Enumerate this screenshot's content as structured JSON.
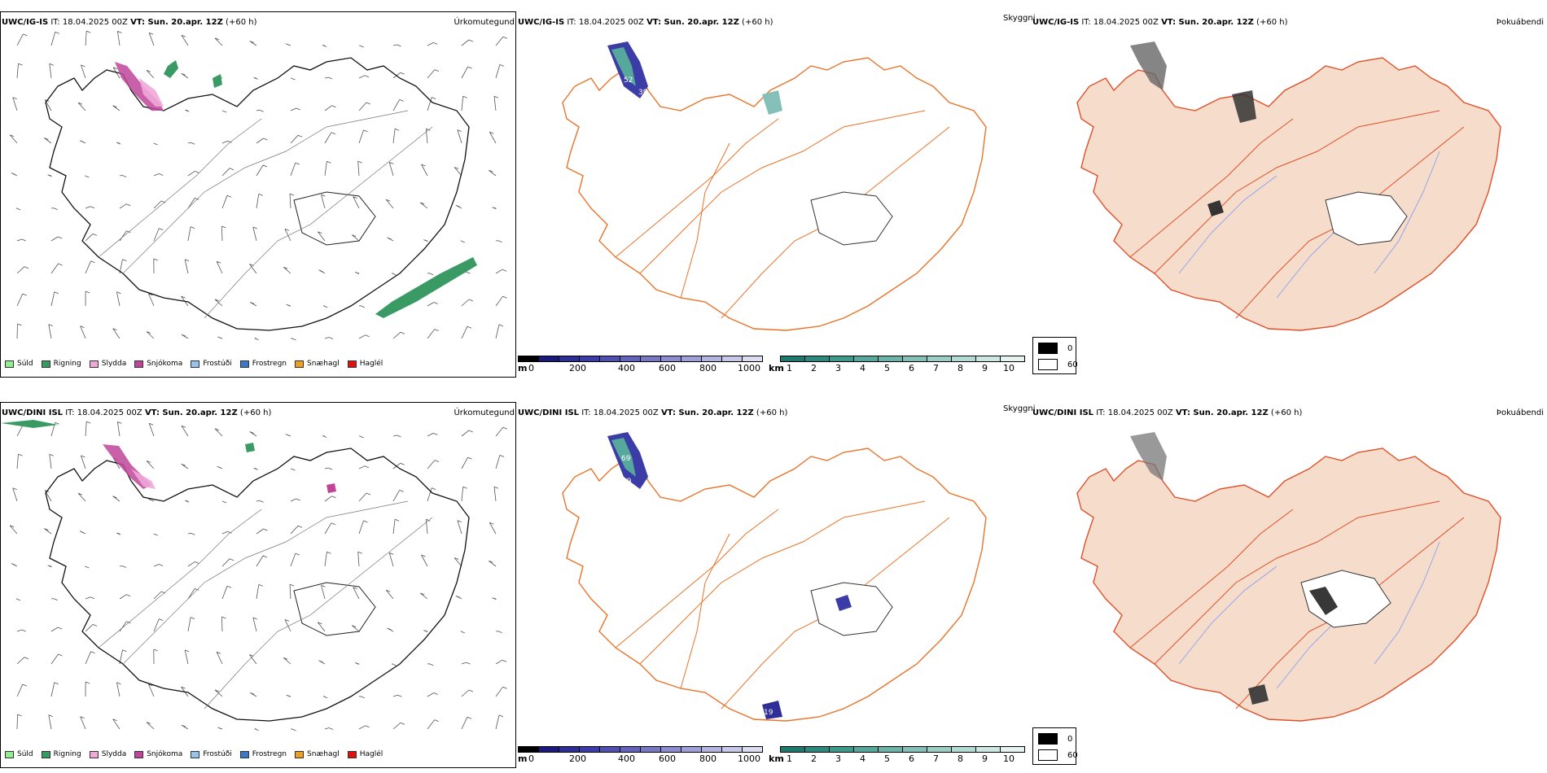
{
  "rows": [
    {
      "id": "row1",
      "model_bold": "UWC/IG-IS",
      "it_text": "IT: 18.04.2025 00Z",
      "vt_bold": "VT: Sun. 20.apr. 12Z",
      "lead": "(+60 h)",
      "panel1_title": "Úrkomutegund",
      "panel2_title": "Skyggni",
      "panel3_title": "Þokuábendi"
    },
    {
      "id": "row2",
      "model_bold": "UWC/DINI ISL",
      "it_text": "IT: 18.04.2025 00Z",
      "vt_bold": "VT: Sun. 20.apr. 12Z",
      "lead": "(+60 h)",
      "panel1_title": "Úrkomutegund",
      "panel2_title": "Skyggni",
      "panel3_title": "Þokuábendi"
    }
  ],
  "precip_legend": [
    {
      "label": "Súld",
      "color": "#90ee90"
    },
    {
      "label": "Rigning",
      "color": "#3a9a64"
    },
    {
      "label": "Slydda",
      "color": "#f0a8d8"
    },
    {
      "label": "Snjókoma",
      "color": "#c0459a"
    },
    {
      "label": "Frostúði",
      "color": "#98c4ec"
    },
    {
      "label": "Frostregn",
      "color": "#3a78c8"
    },
    {
      "label": "Snæhagl",
      "color": "#f0a020"
    },
    {
      "label": "Haglél",
      "color": "#e01010"
    }
  ],
  "elevation_bar": {
    "unit": "m",
    "ticks": [
      "0",
      "200",
      "400",
      "600",
      "800",
      "1000"
    ],
    "colors": [
      "#000000",
      "#1a1a7a",
      "#2e2e96",
      "#3c3ca6",
      "#5050b0",
      "#6464bc",
      "#7878c4",
      "#8c8cce",
      "#a0a0d8",
      "#b4b4e0",
      "#c8c8e8",
      "#dcdcf0"
    ]
  },
  "visibility_bar": {
    "unit": "km",
    "ticks": [
      "1",
      "2",
      "3",
      "4",
      "5",
      "6",
      "7",
      "8",
      "9",
      "10"
    ],
    "colors": [
      "#1e7a6e",
      "#2e8a7e",
      "#3e9a8c",
      "#56a89c",
      "#6cb4aa",
      "#84c0b8",
      "#9ccec6",
      "#b4dad4",
      "#ccE6e2",
      "#e6f2f0"
    ]
  },
  "cloud_key": {
    "items": [
      {
        "label": "0",
        "color": "#000000"
      },
      {
        "label": "60",
        "color": "#ffffff"
      }
    ]
  },
  "colors": {
    "rain": "#3a9a64",
    "snow": "#c0459a",
    "sleet": "#f0a8d8",
    "fog_land": "#f5dccb",
    "roads": "#e8742a",
    "roads_red": "#e0502a",
    "rivers": "#8aa0f0"
  }
}
